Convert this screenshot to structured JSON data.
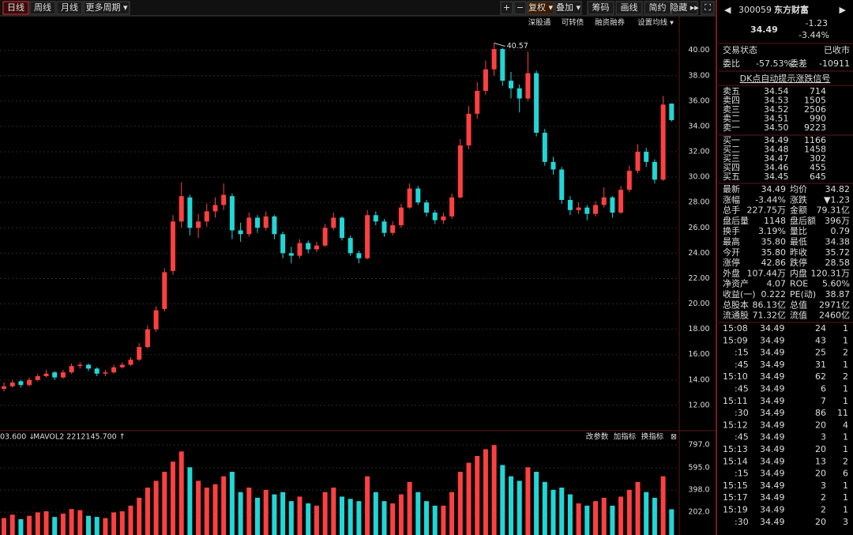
{
  "toolbar": {
    "periods": [
      "日线",
      "周线",
      "月线",
      "更多周期 ▾"
    ],
    "tools": [
      "+",
      "−",
      "复权 ▾",
      "叠加 ▾",
      "筹码",
      "画线",
      "简约",
      "隐藏 ▸▸",
      "⛶"
    ],
    "sub_tools": [
      "深股通",
      "可转债",
      "融资融券",
      "设置均线 ▾"
    ]
  },
  "chart_data": [
    {
      "type": "candlestick",
      "ylim": [
        10,
        41.6
      ],
      "yticks": [
        {
          "value": 12,
          "label": "12.00"
        },
        {
          "value": 14,
          "label": "14.00"
        },
        {
          "value": 16,
          "label": "16.00"
        },
        {
          "value": 18,
          "label": "18.00"
        },
        {
          "value": 20,
          "label": "20.00"
        },
        {
          "value": 22,
          "label": "22.00"
        },
        {
          "value": 24,
          "label": "24.00"
        },
        {
          "value": 26,
          "label": "26.00"
        },
        {
          "value": 28,
          "label": "28.00"
        },
        {
          "value": 30,
          "label": "30.00"
        },
        {
          "value": 32,
          "label": "32.00"
        },
        {
          "value": 34,
          "label": "34.00"
        },
        {
          "value": 36,
          "label": "36.00"
        },
        {
          "value": 38,
          "label": "38.00"
        },
        {
          "value": 40,
          "label": "40.00"
        }
      ],
      "up_color": "#ff4040",
      "down_color": "#21d6d6",
      "max_label": "40.57",
      "max_index": 58,
      "candles": [
        [
          13.3,
          13.8,
          13.1,
          13.5
        ],
        [
          13.5,
          14.0,
          13.4,
          13.8
        ],
        [
          13.9,
          14.0,
          13.4,
          13.6
        ],
        [
          13.6,
          14.2,
          13.5,
          14.0
        ],
        [
          14.0,
          14.5,
          13.9,
          14.3
        ],
        [
          14.3,
          14.8,
          14.2,
          14.5
        ],
        [
          14.6,
          14.7,
          14.0,
          14.2
        ],
        [
          14.2,
          14.8,
          14.1,
          14.6
        ],
        [
          14.6,
          15.3,
          14.5,
          15.1
        ],
        [
          15.1,
          15.4,
          14.9,
          15.2
        ],
        [
          15.2,
          15.3,
          14.7,
          14.9
        ],
        [
          14.9,
          15.0,
          14.3,
          14.5
        ],
        [
          14.5,
          14.8,
          14.3,
          14.6
        ],
        [
          14.6,
          15.2,
          14.5,
          15.0
        ],
        [
          15.0,
          15.4,
          14.9,
          15.2
        ],
        [
          15.2,
          15.8,
          15.1,
          15.6
        ],
        [
          15.6,
          16.9,
          15.5,
          16.6
        ],
        [
          16.6,
          18.3,
          16.5,
          18.0
        ],
        [
          18.0,
          19.8,
          17.8,
          19.5
        ],
        [
          19.6,
          22.8,
          19.4,
          22.5
        ],
        [
          22.6,
          27.0,
          22.3,
          26.5
        ],
        [
          26.5,
          29.6,
          26.0,
          28.5
        ],
        [
          28.4,
          28.6,
          25.4,
          26.0
        ],
        [
          26.0,
          27.1,
          25.2,
          26.5
        ],
        [
          26.5,
          27.9,
          26.1,
          27.3
        ],
        [
          27.3,
          28.4,
          26.8,
          27.8
        ],
        [
          27.8,
          29.5,
          27.4,
          28.6
        ],
        [
          28.5,
          28.7,
          25.1,
          25.8
        ],
        [
          25.8,
          26.4,
          24.9,
          25.5
        ],
        [
          25.5,
          27.2,
          25.3,
          26.8
        ],
        [
          26.8,
          27.0,
          25.6,
          26.0
        ],
        [
          26.0,
          27.3,
          25.8,
          26.9
        ],
        [
          26.9,
          27.0,
          25.1,
          25.5
        ],
        [
          25.5,
          25.7,
          23.6,
          24.0
        ],
        [
          24.0,
          24.5,
          23.2,
          23.8
        ],
        [
          23.8,
          25.1,
          23.6,
          24.8
        ],
        [
          24.8,
          25.0,
          24.0,
          24.3
        ],
        [
          24.3,
          24.9,
          24.1,
          24.6
        ],
        [
          24.6,
          26.3,
          24.5,
          26.0
        ],
        [
          26.0,
          27.2,
          25.8,
          26.8
        ],
        [
          26.8,
          26.9,
          25.0,
          25.2
        ],
        [
          25.2,
          25.4,
          23.8,
          24.0
        ],
        [
          24.0,
          24.2,
          23.2,
          23.6
        ],
        [
          23.6,
          27.4,
          23.5,
          27.0
        ],
        [
          27.0,
          27.3,
          26.2,
          26.5
        ],
        [
          26.5,
          26.7,
          25.3,
          25.6
        ],
        [
          25.6,
          26.5,
          25.4,
          26.2
        ],
        [
          26.2,
          27.9,
          26.0,
          27.6
        ],
        [
          27.6,
          29.5,
          27.5,
          29.1
        ],
        [
          29.1,
          29.3,
          27.8,
          28.0
        ],
        [
          28.0,
          28.2,
          26.9,
          27.2
        ],
        [
          27.2,
          27.4,
          26.3,
          26.6
        ],
        [
          26.6,
          27.2,
          26.3,
          26.9
        ],
        [
          26.9,
          28.7,
          26.7,
          28.4
        ],
        [
          28.4,
          33.0,
          28.3,
          32.5
        ],
        [
          32.5,
          35.6,
          32.2,
          35.0
        ],
        [
          35.0,
          37.5,
          34.6,
          36.8
        ],
        [
          36.8,
          39.2,
          36.5,
          38.5
        ],
        [
          38.5,
          40.57,
          38.0,
          40.1
        ],
        [
          40.1,
          40.2,
          37.2,
          37.6
        ],
        [
          37.6,
          38.3,
          36.2,
          37.0
        ],
        [
          37.0,
          37.3,
          35.1,
          36.2
        ],
        [
          36.2,
          39.9,
          36.0,
          38.2
        ],
        [
          38.2,
          38.4,
          33.2,
          33.5
        ],
        [
          33.5,
          33.8,
          30.9,
          31.2
        ],
        [
          31.2,
          31.6,
          30.2,
          30.6
        ],
        [
          30.6,
          30.8,
          27.9,
          28.2
        ],
        [
          28.2,
          28.5,
          27.0,
          27.4
        ],
        [
          27.4,
          28.0,
          27.1,
          27.6
        ],
        [
          27.6,
          27.8,
          26.6,
          27.1
        ],
        [
          27.1,
          28.1,
          26.9,
          27.8
        ],
        [
          27.8,
          29.2,
          27.6,
          28.4
        ],
        [
          28.4,
          28.5,
          26.8,
          27.2
        ],
        [
          27.2,
          29.3,
          27.1,
          29.0
        ],
        [
          29.0,
          30.9,
          28.8,
          30.5
        ],
        [
          30.5,
          32.6,
          30.3,
          32.0
        ],
        [
          32.0,
          32.3,
          30.8,
          31.2
        ],
        [
          31.2,
          31.4,
          29.5,
          29.8
        ],
        [
          29.8,
          36.4,
          29.7,
          35.72
        ],
        [
          35.8,
          35.8,
          34.38,
          34.49
        ]
      ]
    },
    {
      "type": "bar",
      "ylim": [
        0,
        854
      ],
      "yticks": [
        {
          "value": 202,
          "label": "202.0"
        },
        {
          "value": 398,
          "label": "398.0"
        },
        {
          "value": 595,
          "label": "595.0"
        },
        {
          "value": 797,
          "label": "797.0"
        }
      ],
      "indicator": "03.600 ↓",
      "mavol": "MAVOL2 2212145.700 ↑",
      "tools": [
        "改参数",
        "加指标",
        "换指标",
        "⊠"
      ],
      "values": [
        150,
        180,
        140,
        170,
        200,
        210,
        160,
        190,
        230,
        220,
        170,
        160,
        150,
        200,
        210,
        260,
        330,
        420,
        480,
        560,
        650,
        740,
        600,
        480,
        420,
        450,
        520,
        560,
        380,
        420,
        330,
        400,
        360,
        380,
        300,
        340,
        280,
        260,
        380,
        420,
        340,
        320,
        300,
        520,
        380,
        300,
        280,
        360,
        470,
        380,
        300,
        260,
        260,
        380,
        560,
        640,
        700,
        760,
        797,
        620,
        520,
        480,
        600,
        560,
        470,
        400,
        420,
        360,
        280,
        260,
        300,
        330,
        260,
        340,
        400,
        470,
        380,
        330,
        520,
        228
      ]
    }
  ],
  "quote": {
    "code": "300059",
    "name": "东方财富",
    "price": "34.49",
    "change": "-1.23",
    "pct": "-3.44%",
    "status_label": "交易状态",
    "status": "已收市",
    "wb_label": "委比",
    "wb": "-57.53%",
    "wc_label": "委差",
    "wc": "-10911",
    "banner": "DK点自动提示涨跌信号",
    "asks": [
      [
        "卖五",
        "34.54",
        "714"
      ],
      [
        "卖四",
        "34.53",
        "1505"
      ],
      [
        "卖三",
        "34.52",
        "2506"
      ],
      [
        "卖二",
        "34.51",
        "990"
      ],
      [
        "卖一",
        "34.50",
        "9223"
      ]
    ],
    "bids": [
      [
        "买一",
        "34.49",
        "1166"
      ],
      [
        "买二",
        "34.48",
        "1458"
      ],
      [
        "买三",
        "34.47",
        "302"
      ],
      [
        "买四",
        "34.46",
        "455"
      ],
      [
        "买五",
        "34.45",
        "645"
      ]
    ],
    "stats": [
      [
        {
          "label": "最新",
          "value": "34.49",
          "color": "#33dd33"
        },
        {
          "label": "均价",
          "value": "34.82",
          "color": "#e8e8e8"
        }
      ],
      [
        {
          "label": "涨幅",
          "value": "-3.44%",
          "color": "#33dd33"
        },
        {
          "label": "涨跌",
          "value": "▼1.23",
          "color": "#33dd33"
        }
      ],
      [
        {
          "label": "总手",
          "value": "227.75万",
          "color": "#e8e8e8"
        },
        {
          "label": "金额",
          "value": "79.31亿",
          "color": "#33dddd"
        }
      ],
      [
        {
          "label": "盘后量",
          "value": "1148",
          "color": "#e8e8e8"
        },
        {
          "label": "盘后额",
          "value": "396万",
          "color": "#33dddd"
        }
      ],
      [
        {
          "label": "换手",
          "value": "3.19%",
          "color": "#e8e8e8"
        },
        {
          "label": "量比",
          "value": "0.79",
          "color": "#e8e8e8"
        }
      ],
      [
        {
          "label": "最高",
          "value": "35.80",
          "color": "#ff4444"
        },
        {
          "label": "最低",
          "value": "34.38",
          "color": "#33dd33"
        }
      ],
      [
        {
          "label": "今开",
          "value": "35.80",
          "color": "#ff4444"
        },
        {
          "label": "昨收",
          "value": "35.72",
          "color": "#e8e8e8"
        }
      ],
      [
        {
          "label": "涨停",
          "value": "42.86",
          "color": "#ff4444"
        },
        {
          "label": "跌停",
          "value": "28.58",
          "color": "#33dd33"
        }
      ],
      [
        {
          "label": "外盘",
          "value": "107.44万",
          "color": "#ff4444"
        },
        {
          "label": "内盘",
          "value": "120.31万",
          "color": "#33dd33"
        }
      ],
      [
        {
          "label": "净资产",
          "value": "4.07",
          "color": "#e8e8e8"
        },
        {
          "label": "ROE",
          "value": "5.60%",
          "color": "#e8e8e8"
        }
      ],
      [
        {
          "label": "收益(一)",
          "value": "0.222",
          "color": "#e8e8e8"
        },
        {
          "label": "PE(动)",
          "value": "38.87",
          "color": "#e8e8e8"
        }
      ],
      [
        {
          "label": "总股本",
          "value": "86.13亿",
          "color": "#e8e8e8"
        },
        {
          "label": "总值",
          "value": "2971亿",
          "color": "#e8e8e8"
        }
      ],
      [
        {
          "label": "流通股",
          "value": "71.32亿",
          "color": "#e8e8e8"
        },
        {
          "label": "流值",
          "value": "2460亿",
          "color": "#e8e8e8"
        }
      ]
    ],
    "ticks": [
      [
        "15:08",
        "34.49",
        "24",
        "1"
      ],
      [
        "15:09",
        "34.49",
        "43",
        "1"
      ],
      [
        ":15",
        "34.49",
        "25",
        "2"
      ],
      [
        ":45",
        "34.49",
        "31",
        "1"
      ],
      [
        "15:10",
        "34.49",
        "62",
        "2"
      ],
      [
        ":45",
        "34.49",
        "6",
        "1"
      ],
      [
        "15:11",
        "34.49",
        "7",
        "1"
      ],
      [
        ":30",
        "34.49",
        "86",
        "11"
      ],
      [
        "15:12",
        "34.49",
        "20",
        "4"
      ],
      [
        ":45",
        "34.49",
        "3",
        "1"
      ],
      [
        "15:13",
        "34.49",
        "20",
        "1"
      ],
      [
        "15:14",
        "34.49",
        "13",
        "2"
      ],
      [
        ":15",
        "34.49",
        "20",
        "6"
      ],
      [
        "15:15",
        "34.49",
        "3",
        "1"
      ],
      [
        "15:17",
        "34.49",
        "2",
        "1"
      ],
      [
        "15:19",
        "34.49",
        "2",
        "1"
      ],
      [
        ":30",
        "34.49",
        "20",
        "3"
      ]
    ]
  }
}
